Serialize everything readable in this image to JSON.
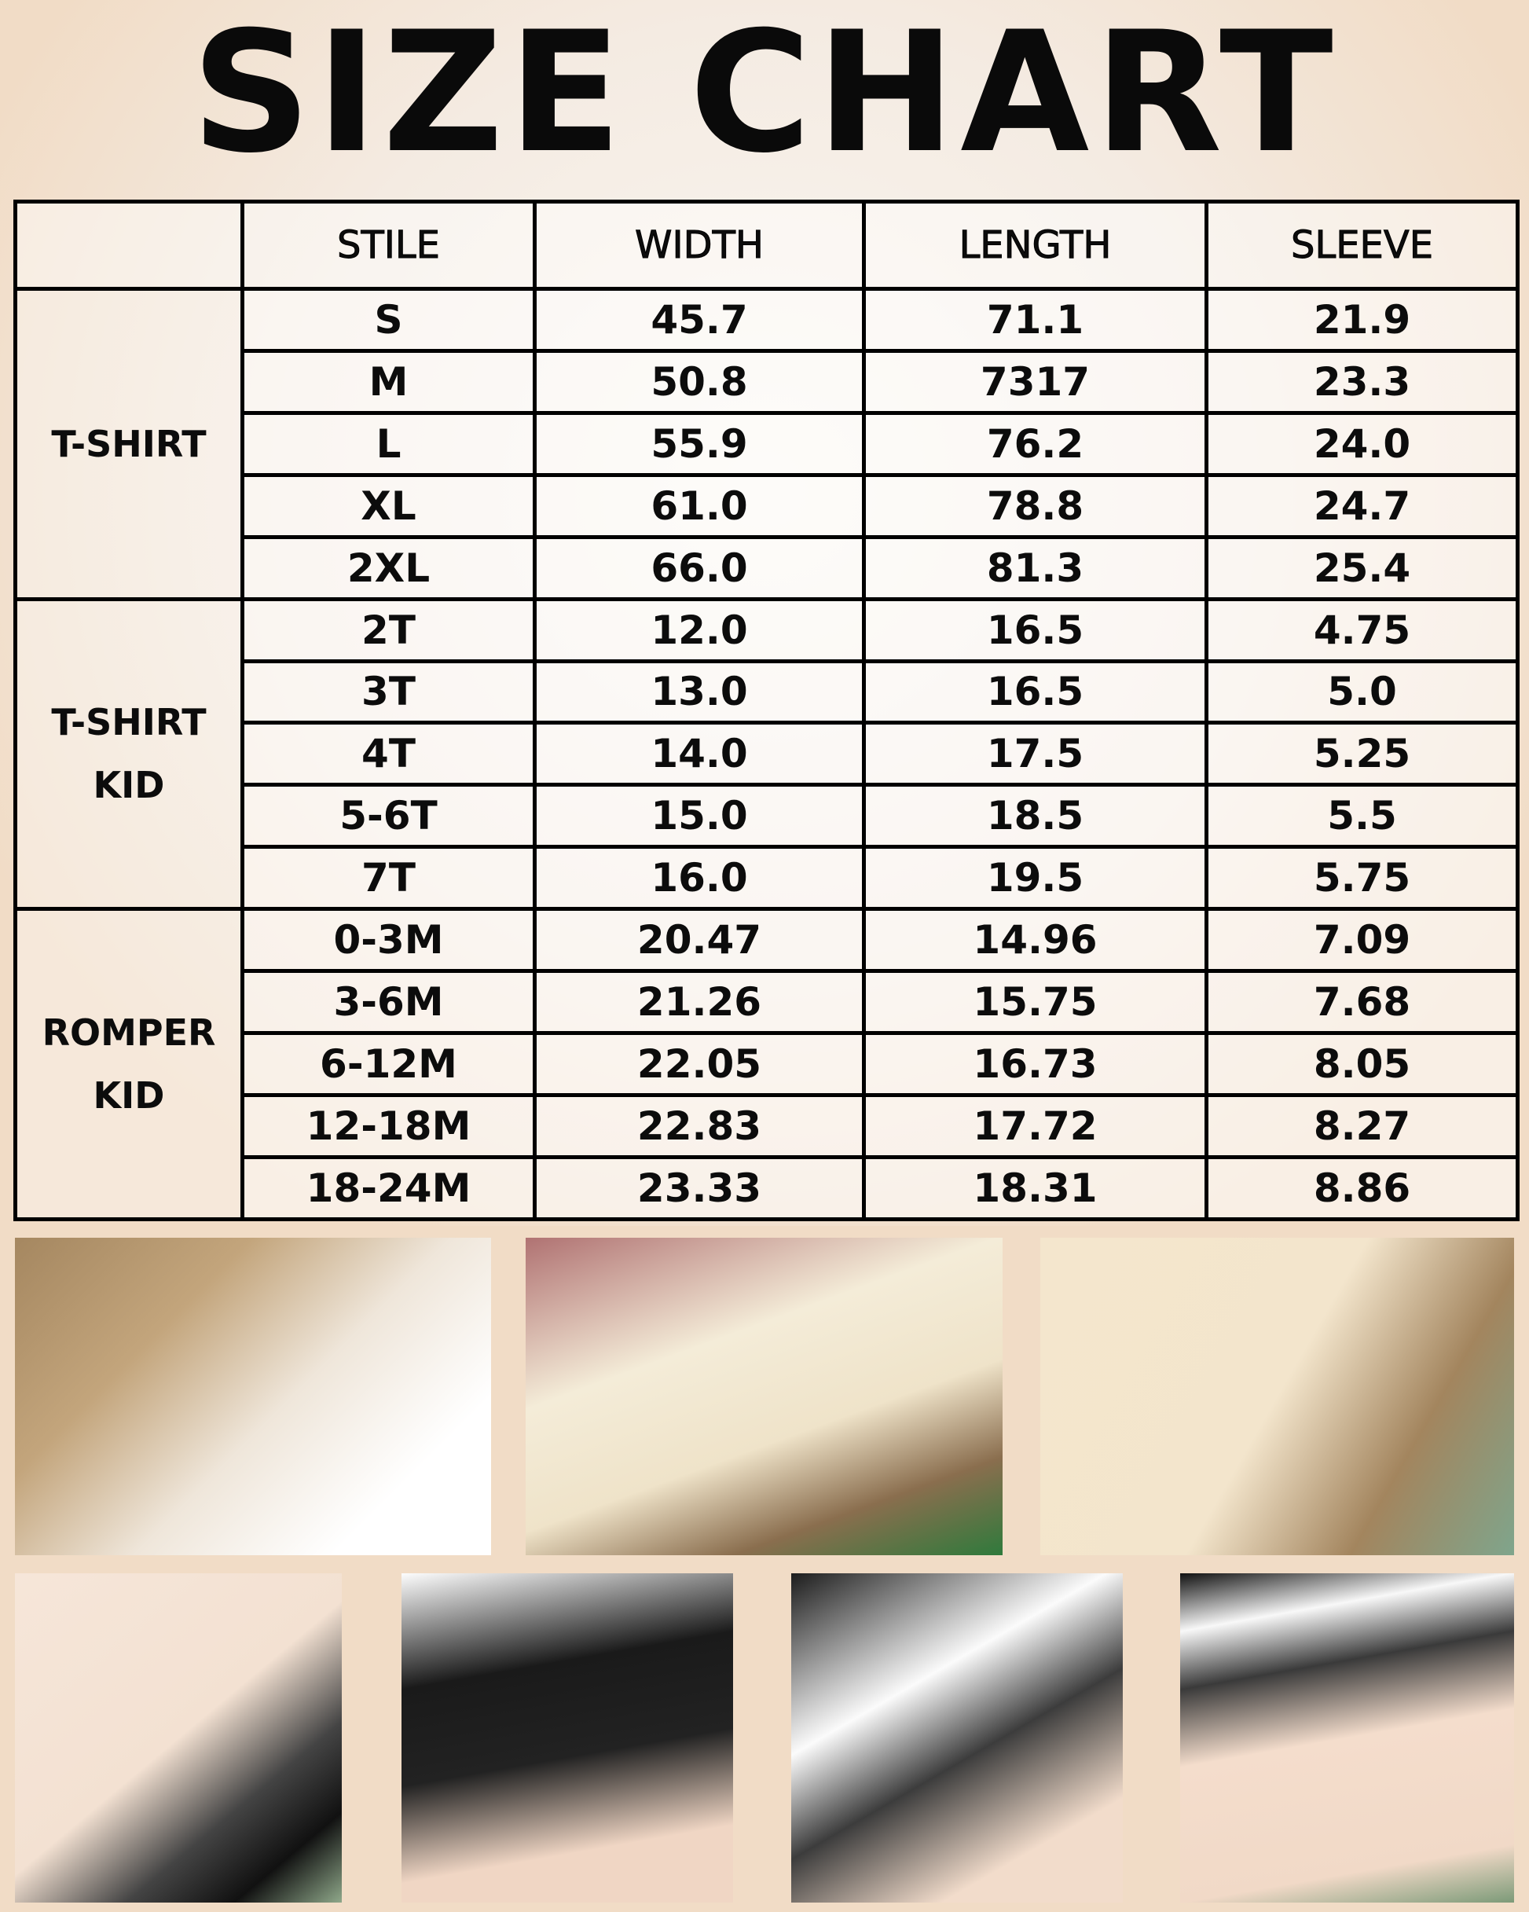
{
  "title": "SIZE CHART",
  "headers": [
    "",
    "STILE",
    "WIDTH",
    "LENGTH",
    "SLEEVE"
  ],
  "groups": [
    {
      "label": [
        "T-SHIRT"
      ],
      "rows": [
        [
          "S",
          "45.7",
          "71.1",
          "21.9"
        ],
        [
          "M",
          "50.8",
          "7317",
          "23.3"
        ],
        [
          "L",
          "55.9",
          "76.2",
          "24.0"
        ],
        [
          "XL",
          "61.0",
          "78.8",
          "24.7"
        ],
        [
          "2XL",
          "66.0",
          "81.3",
          "25.4"
        ]
      ]
    },
    {
      "label": [
        "T-SHIRT",
        "KID"
      ],
      "rows": [
        [
          "2T",
          "12.0",
          "16.5",
          "4.75"
        ],
        [
          "3T",
          "13.0",
          "16.5",
          "5.0"
        ],
        [
          "4T",
          "14.0",
          "17.5",
          "5.25"
        ],
        [
          "5-6T",
          "15.0",
          "18.5",
          "5.5"
        ],
        [
          "7T",
          "16.0",
          "19.5",
          "5.75"
        ]
      ]
    },
    {
      "label": [
        "ROMPER",
        "KID"
      ],
      "rows": [
        [
          "0-3M",
          "20.47",
          "14.96",
          "7.09"
        ],
        [
          "3-6M",
          "21.26",
          "15.75",
          "7.68"
        ],
        [
          "6-12M",
          "22.05",
          "16.73",
          "8.05"
        ],
        [
          "12-18M",
          "22.83",
          "17.72",
          "8.27"
        ],
        [
          "18-24M",
          "23.33",
          "18.31",
          "8.86"
        ]
      ]
    }
  ],
  "photos": [
    "rainbow-and-folded-shirts",
    "rompers-and-shamrocks",
    "cream-shirt-on-rattan",
    "shirts-with-eucalyptus-1",
    "shirts-with-eucalyptus-2",
    "shirts-with-eucalyptus-3",
    "shirts-with-eucalyptus-4"
  ]
}
